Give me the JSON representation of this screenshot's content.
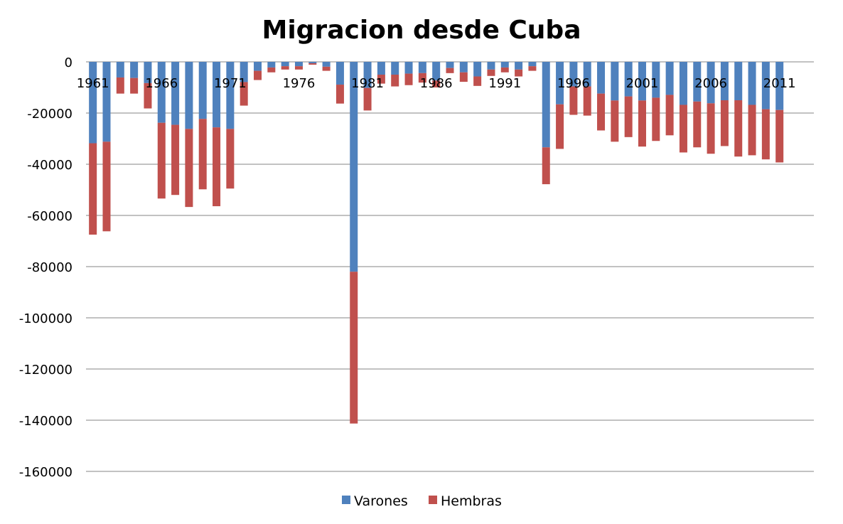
{
  "chart_data": {
    "type": "bar",
    "stacked": true,
    "title": "Migracion desde Cuba",
    "xlabel": "",
    "ylabel": "",
    "ylim": [
      -160000,
      0
    ],
    "yticks": [
      0,
      -20000,
      -40000,
      -60000,
      -80000,
      -100000,
      -120000,
      -140000,
      -160000
    ],
    "ytick_labels": [
      "0",
      "-20000",
      "-40000",
      "-60000",
      "-80000",
      "-100000",
      "-120000",
      "-140000",
      "-160000"
    ],
    "xtick_labels": [
      "1961",
      "1966",
      "1971",
      "1976",
      "1981",
      "1986",
      "1991",
      "1996",
      "2001",
      "2006",
      "2011"
    ],
    "grid": true,
    "legend_position": "bottom",
    "categories": [
      1961,
      1962,
      1963,
      1964,
      1965,
      1966,
      1967,
      1968,
      1969,
      1970,
      1971,
      1972,
      1973,
      1974,
      1975,
      1976,
      1977,
      1978,
      1979,
      1980,
      1981,
      1982,
      1983,
      1984,
      1985,
      1986,
      1987,
      1988,
      1989,
      1990,
      1991,
      1992,
      1993,
      1994,
      1995,
      1996,
      1997,
      1998,
      1999,
      2000,
      2001,
      2002,
      2003,
      2004,
      2005,
      2006,
      2007,
      2008,
      2009,
      2010,
      2011
    ],
    "series": [
      {
        "name": "Varones",
        "color": "#4f81bd",
        "values": [
          -31800,
          -31200,
          -6100,
          -6300,
          -8300,
          -23800,
          -24600,
          -26200,
          -22300,
          -25600,
          -26200,
          -7900,
          -3500,
          -2200,
          -1700,
          -1700,
          -550,
          -1900,
          -8900,
          -82000,
          -10200,
          -5000,
          -5000,
          -4600,
          -4400,
          -7300,
          -2400,
          -4100,
          -5700,
          -3000,
          -2200,
          -3000,
          -1700,
          -33400,
          -16600,
          -9600,
          -9600,
          -12400,
          -15100,
          -13500,
          -15100,
          -14000,
          -12900,
          -16800,
          -15500,
          -16200,
          -15000,
          -15000,
          -16800,
          -18500,
          -18800
        ]
      },
      {
        "name": "Hembras",
        "color": "#c0504d",
        "values": [
          -35700,
          -35000,
          -6300,
          -6100,
          -9900,
          -29600,
          -27400,
          -30500,
          -27500,
          -30800,
          -23300,
          -9200,
          -3600,
          -1900,
          -1300,
          -1300,
          -550,
          -1600,
          -7400,
          -59300,
          -8800,
          -3500,
          -4600,
          -4500,
          -3700,
          -2700,
          -2000,
          -3700,
          -3700,
          -2500,
          -1900,
          -2700,
          -1800,
          -14400,
          -17400,
          -11100,
          -11400,
          -14400,
          -16100,
          -15900,
          -18000,
          -16900,
          -15800,
          -18600,
          -17900,
          -19700,
          -17900,
          -22000,
          -19700,
          -19600,
          -20500
        ]
      }
    ]
  }
}
